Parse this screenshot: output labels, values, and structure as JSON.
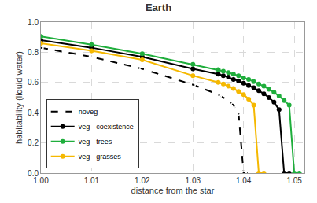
{
  "chart_data": {
    "type": "line",
    "title": "Earth",
    "x_label": "distance from the star",
    "y_label": "habitability (liquid water)",
    "xlim": [
      1.0,
      1.052
    ],
    "xticks": [
      {
        "value": 1.0,
        "label": "1.00"
      },
      1.01,
      1.02,
      1.03,
      1.04,
      1.05
    ],
    "ylim": [
      0,
      1
    ],
    "yticks": [
      {
        "value": 0,
        "label": "0.0"
      },
      0.2,
      0.4,
      0.6,
      0.8,
      {
        "value": 1,
        "label": "1.0"
      }
    ],
    "grid": true,
    "legend": "lower left",
    "series": [
      {
        "name": "noveg",
        "color": "#000000",
        "marker": "circle-open",
        "line_style": "dash",
        "x": [
          1.0,
          1.01,
          1.02,
          1.03,
          1.035,
          1.036,
          1.037,
          1.038,
          1.039,
          1.04,
          1.041
        ],
        "values": [
          0.83,
          0.77,
          0.69,
          0.585,
          0.52,
          0.5,
          0.48,
          0.45,
          0.4,
          0,
          0
        ]
      },
      {
        "name": "veg - coexistence",
        "color": "#000000",
        "marker": "circle",
        "line_style": "solid",
        "x": [
          1.0,
          1.01,
          1.02,
          1.03,
          1.035,
          1.036,
          1.037,
          1.038,
          1.039,
          1.04,
          1.041,
          1.042,
          1.043,
          1.044,
          1.045,
          1.046,
          1.047,
          1.048,
          1.049
        ],
        "values": [
          0.88,
          0.83,
          0.77,
          0.69,
          0.655,
          0.645,
          0.635,
          0.62,
          0.61,
          0.595,
          0.58,
          0.565,
          0.545,
          0.525,
          0.5,
          0.47,
          0.42,
          0,
          0
        ]
      },
      {
        "name": "veg - trees",
        "color": "#1fae3c",
        "marker": "circle",
        "line_style": "solid",
        "x": [
          1.0,
          1.01,
          1.02,
          1.03,
          1.035,
          1.036,
          1.037,
          1.038,
          1.039,
          1.04,
          1.041,
          1.042,
          1.043,
          1.044,
          1.045,
          1.046,
          1.047,
          1.048,
          1.049,
          1.05,
          1.051
        ],
        "values": [
          0.905,
          0.85,
          0.79,
          0.72,
          0.685,
          0.675,
          0.665,
          0.655,
          0.645,
          0.63,
          0.62,
          0.605,
          0.59,
          0.575,
          0.555,
          0.535,
          0.51,
          0.48,
          0.45,
          0,
          0
        ]
      },
      {
        "name": "veg - grasses",
        "color": "#f5b800",
        "marker": "circle",
        "line_style": "solid",
        "x": [
          1.0,
          1.01,
          1.02,
          1.03,
          1.035,
          1.036,
          1.037,
          1.038,
          1.039,
          1.04,
          1.041,
          1.042,
          1.043,
          1.044
        ],
        "values": [
          0.86,
          0.81,
          0.75,
          0.645,
          0.6,
          0.59,
          0.575,
          0.56,
          0.54,
          0.52,
          0.49,
          0.45,
          0,
          0
        ]
      }
    ]
  }
}
